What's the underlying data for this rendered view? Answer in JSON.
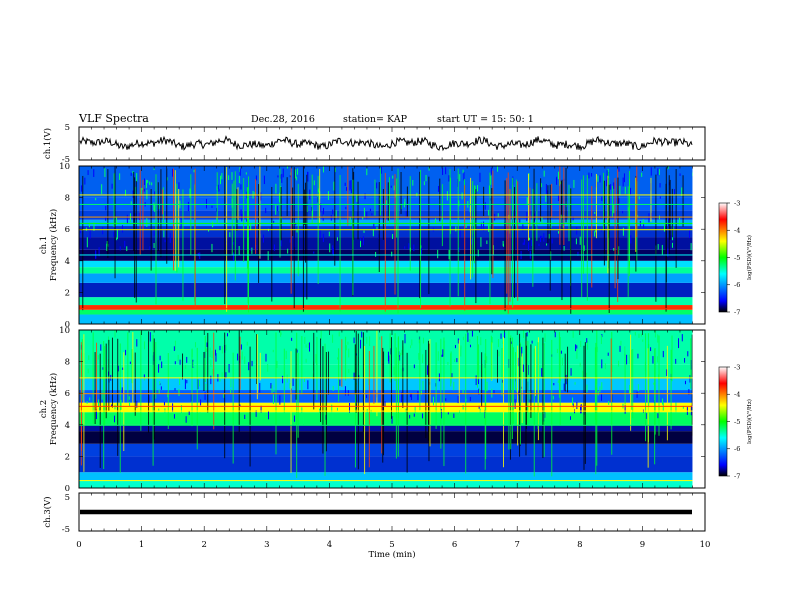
{
  "header": {
    "title": "VLF Spectra",
    "date": "Dec.28, 2016",
    "station": "station= KAP",
    "start": "start  UT =   15: 50: 1"
  },
  "chart_data": [
    {
      "type": "line",
      "name": "ch1-waveform",
      "ylabel": "ch.1(V)",
      "ylim": [
        -5,
        5
      ],
      "yticks": [
        "5",
        "-5"
      ],
      "xlim": [
        0,
        10
      ],
      "trace_end_min": 9.8,
      "approx_level": 0,
      "approx_amplitude": 1.2
    },
    {
      "type": "heatmap",
      "name": "ch1-spectrogram",
      "ylabel": "Frequency (kHz)",
      "channel_label": "ch.1",
      "ylim": [
        0,
        10
      ],
      "yticks": [
        "0",
        "2",
        "4",
        "6",
        "8",
        "10"
      ],
      "xlim": [
        0,
        10
      ],
      "data_end_min": 9.8,
      "colorbar": {
        "label": "log(PSD)(V²/Hz)",
        "range": [
          -7,
          -3
        ],
        "ticks": [
          "-3",
          "-4",
          "-5",
          "-6",
          "-7"
        ]
      }
    },
    {
      "type": "heatmap",
      "name": "ch2-spectrogram",
      "ylabel": "Frequency (kHz)",
      "channel_label": "ch.2",
      "ylim": [
        0,
        10
      ],
      "yticks": [
        "0",
        "2",
        "4",
        "6",
        "8",
        "10"
      ],
      "xlim": [
        0,
        10
      ],
      "data_end_min": 9.8,
      "colorbar": {
        "label": "log(PSD)(V²/Hz)",
        "range": [
          -7,
          -3
        ],
        "ticks": [
          "-3",
          "-4",
          "-5",
          "-6",
          "-7"
        ]
      }
    },
    {
      "type": "line",
      "name": "ch3-waveform",
      "ylabel": "ch.3(V)",
      "ylim": [
        -5,
        5
      ],
      "yticks": [
        "5",
        "-5"
      ],
      "xlim": [
        0,
        10
      ],
      "trace_end_min": 9.8,
      "approx_level": 0
    }
  ],
  "xaxis": {
    "label": "Time (min)",
    "ticks": [
      "0",
      "1",
      "2",
      "3",
      "4",
      "5",
      "6",
      "7",
      "8",
      "9",
      "10"
    ]
  },
  "colors": {
    "frame": "#000000",
    "trace": "#000000",
    "colormap": [
      "#000000",
      "#0000ff",
      "#00ffff",
      "#00ff00",
      "#ffff00",
      "#ff0000",
      "#ffffff"
    ]
  }
}
